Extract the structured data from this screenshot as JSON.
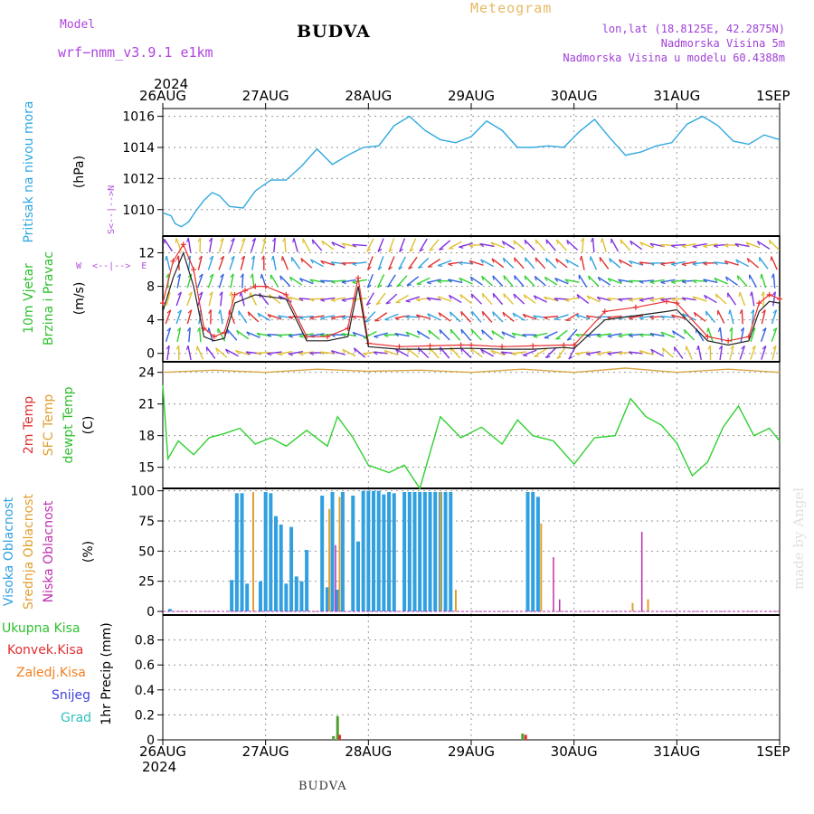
{
  "header": {
    "model_label": "Model",
    "model_name": "wrf−nmm_v3.9.1  e1km",
    "title": "BUDVA",
    "meteogram_label": "Meteogram",
    "lonlat": "lon,lat (18.8125E, 42.2875N)",
    "elevation": "Nadmorska Visina 5m",
    "model_elevation": "Nadmorska Visina u modelu 60.4388m"
  },
  "year_label": "2024",
  "date_ticks": [
    "26AUG",
    "27AUG",
    "28AUG",
    "29AUG",
    "30AUG",
    "31AUG",
    "1SEP"
  ],
  "footer_title": "BUDVA",
  "watermark": "made by Angel",
  "wind_compass": {
    "n": "N",
    "w": "W",
    "e": "E",
    "s": "S"
  },
  "colors": {
    "pressure": "#30a8e0",
    "wind_speed": "#222222",
    "gust": "#e83030",
    "sfc_temp": "#d8a848",
    "dewpt_temp": "#30d030",
    "high_cloud": "#30a0e0",
    "mid_cloud": "#e0a030",
    "low_cloud": "#c030b0",
    "total_precip": "#50a030",
    "conv_precip": "#e03030",
    "frozen_precip": "#f08020"
  },
  "chart_data": [
    {
      "type": "line",
      "panel": "pressure",
      "ylabel": [
        "Pritisak na nivou mora",
        "(hPa)"
      ],
      "ylim": [
        1008.3,
        1016.5
      ],
      "yticks": [
        1010,
        1012,
        1014,
        1016
      ],
      "grid": true,
      "x_unit": "days since 26AUG 00Z",
      "series": [
        {
          "values_x": [
            0,
            0.08,
            0.12,
            0.18,
            0.25,
            0.32,
            0.4,
            0.48,
            0.55,
            0.65,
            0.78,
            0.9,
            1.05,
            1.2,
            1.35,
            1.5,
            1.65,
            1.8,
            1.95,
            2.1,
            2.25,
            2.4,
            2.55,
            2.7,
            2.85,
            3.0,
            3.15,
            3.3,
            3.45,
            3.6,
            3.75,
            3.9,
            4.05,
            4.2,
            4.35,
            4.5,
            4.65,
            4.8,
            4.95,
            5.1,
            5.25,
            5.4,
            5.55,
            5.7,
            5.85,
            6.0
          ],
          "values_y": [
            1009.8,
            1009.6,
            1009.1,
            1008.9,
            1009.2,
            1009.9,
            1010.6,
            1011.1,
            1010.9,
            1010.2,
            1010.1,
            1011.2,
            1011.9,
            1011.9,
            1012.8,
            1013.9,
            1012.9,
            1013.5,
            1014.0,
            1014.1,
            1015.4,
            1016.0,
            1015.1,
            1014.5,
            1014.3,
            1014.7,
            1015.7,
            1015.1,
            1014.0,
            1014.0,
            1014.1,
            1014.0,
            1015.0,
            1015.8,
            1014.6,
            1013.5,
            1013.7,
            1014.1,
            1014.3,
            1015.5,
            1016.0,
            1015.4,
            1014.4,
            1014.2,
            1014.8,
            1014.5
          ]
        }
      ]
    },
    {
      "type": "line",
      "panel": "wind",
      "ylabel": [
        "10m Vjetar",
        "Brzina i Pravac",
        "(m/s)"
      ],
      "ylim": [
        -1,
        14
      ],
      "yticks": [
        0,
        4,
        8,
        12
      ],
      "grid": true,
      "series": [
        {
          "name": "speed",
          "values_x": [
            0,
            0.1,
            0.2,
            0.3,
            0.4,
            0.5,
            0.6,
            0.7,
            0.8,
            0.9,
            1.0,
            1.2,
            1.4,
            1.6,
            1.8,
            1.9,
            2.0,
            2.3,
            2.6,
            2.9,
            3.0,
            3.3,
            3.6,
            3.9,
            4.0,
            4.3,
            4.6,
            4.9,
            5.0,
            5.3,
            5.5,
            5.7,
            5.8,
            5.9,
            6.0
          ],
          "values_y": [
            5,
            9,
            12,
            8,
            2,
            1.5,
            1.8,
            6,
            6.5,
            7,
            6.8,
            6.5,
            1.5,
            1.5,
            2.0,
            8,
            0.8,
            0.5,
            0.5,
            0.6,
            0.6,
            0.5,
            0.5,
            0.7,
            0.6,
            4,
            4.5,
            5,
            5.2,
            1.5,
            1.0,
            1.5,
            5.0,
            6.2,
            6.0
          ]
        },
        {
          "name": "gust",
          "values_x": [
            0,
            0.1,
            0.2,
            0.3,
            0.4,
            0.5,
            0.6,
            0.7,
            0.8,
            0.9,
            1.0,
            1.2,
            1.4,
            1.6,
            1.8,
            1.9,
            2.0,
            2.3,
            2.6,
            2.9,
            3.0,
            3.3,
            3.6,
            3.9,
            4.0,
            4.3,
            4.6,
            4.9,
            5.0,
            5.3,
            5.5,
            5.7,
            5.8,
            5.9,
            6.0
          ],
          "values_y": [
            6,
            11,
            13,
            10,
            3,
            2,
            2.5,
            7,
            7.5,
            8,
            8,
            7,
            2,
            2,
            3,
            9,
            1.2,
            0.8,
            0.9,
            1.0,
            1.0,
            0.8,
            0.9,
            1.0,
            1.0,
            5,
            5.5,
            6.2,
            6,
            2,
            1.5,
            2,
            6.0,
            7.0,
            6.5
          ]
        }
      ],
      "wind_barbs": true
    },
    {
      "type": "line",
      "panel": "temperature",
      "ylabel": [
        "2m Temp",
        "SFC Temp",
        "dewpt Temp",
        "(C)"
      ],
      "ylim": [
        13,
        25
      ],
      "yticks": [
        15,
        18,
        21,
        24
      ],
      "grid": true,
      "series": [
        {
          "name": "sfc",
          "values_x": [
            0,
            0.5,
            1.0,
            1.5,
            2.0,
            2.5,
            3.0,
            3.5,
            4.0,
            4.5,
            5.0,
            5.5,
            6.0
          ],
          "values_y": [
            24.0,
            24.2,
            24.0,
            24.3,
            24.1,
            24.2,
            24.0,
            24.3,
            24.0,
            24.4,
            24.0,
            24.3,
            24.0
          ]
        },
        {
          "name": "dewpt",
          "values_x": [
            0,
            0.05,
            0.15,
            0.3,
            0.45,
            0.6,
            0.75,
            0.9,
            1.05,
            1.2,
            1.4,
            1.6,
            1.7,
            1.85,
            2.0,
            2.2,
            2.35,
            2.5,
            2.7,
            2.9,
            3.1,
            3.3,
            3.45,
            3.6,
            3.8,
            4.0,
            4.2,
            4.4,
            4.55,
            4.7,
            4.85,
            5.0,
            5.15,
            5.3,
            5.45,
            5.6,
            5.75,
            5.9,
            6.0
          ],
          "values_y": [
            22.8,
            15.8,
            17.5,
            16.2,
            17.8,
            18.2,
            18.7,
            17.2,
            17.8,
            17.0,
            18.5,
            17.0,
            19.8,
            17.8,
            15.2,
            14.5,
            15.2,
            13.0,
            19.8,
            17.8,
            18.8,
            17.2,
            19.5,
            18.0,
            17.5,
            15.3,
            17.8,
            18.0,
            21.5,
            19.8,
            19.0,
            17.3,
            14.2,
            15.5,
            18.8,
            20.8,
            18.0,
            18.7,
            17.5
          ]
        }
      ]
    },
    {
      "type": "bar",
      "panel": "cloud",
      "ylabel": [
        "Visoka Oblacnost",
        "Srednja Oblacnost",
        "Niska Oblacnost",
        "(%)"
      ],
      "ylim": [
        -3,
        102
      ],
      "yticks": [
        0,
        25,
        50,
        75,
        100
      ],
      "grid": true,
      "series": [
        {
          "name": "high",
          "values_x": [
            0.07,
            0.67,
            0.72,
            0.77,
            0.82,
            0.95,
            1.0,
            1.05,
            1.1,
            1.15,
            1.2,
            1.25,
            1.3,
            1.35,
            1.4,
            1.55,
            1.6,
            1.65,
            1.7,
            1.75,
            1.85,
            1.9,
            1.95,
            2.0,
            2.05,
            2.1,
            2.15,
            2.2,
            2.25,
            2.35,
            2.4,
            2.45,
            2.5,
            2.55,
            2.6,
            2.65,
            2.7,
            2.75,
            2.8,
            3.55,
            3.6,
            3.65
          ],
          "values_y": [
            2,
            26,
            98,
            98,
            23,
            25,
            99,
            98,
            79,
            72,
            23,
            70,
            29,
            25,
            51,
            96,
            20,
            99,
            18,
            99,
            96,
            58,
            100,
            100,
            100,
            100,
            97,
            99,
            98,
            99,
            99,
            99,
            99,
            99,
            99,
            99,
            99,
            99,
            99,
            99,
            99,
            95
          ]
        },
        {
          "name": "mid",
          "values_x": [
            0.88,
            1.62,
            1.72,
            2.7,
            2.85,
            3.68,
            4.57,
            4.72
          ],
          "values_y": [
            99,
            85,
            95,
            99,
            18,
            73,
            7,
            10
          ]
        },
        {
          "name": "low",
          "values_x": [
            1.68,
            3.8,
            3.86,
            4.66
          ],
          "values_y": [
            55,
            45,
            10,
            66
          ]
        }
      ]
    },
    {
      "type": "bar",
      "panel": "precip",
      "ylabel": [
        "1hr Precip (mm)"
      ],
      "legend": [
        "Ukupna Kisa",
        "Konvek.Kisa",
        "Zaledj.Kisa",
        "Snijeg",
        "Grad"
      ],
      "ylim": [
        0,
        1.0
      ],
      "yticks": [
        0,
        0.2,
        0.4,
        0.6,
        0.8
      ],
      "grid": true,
      "series": [
        {
          "name": "total",
          "values_x": [
            1.66,
            1.7,
            3.5
          ],
          "values_y": [
            0.03,
            0.19,
            0.05
          ]
        },
        {
          "name": "conv",
          "values_x": [
            1.72,
            3.53
          ],
          "values_y": [
            0.04,
            0.04
          ]
        }
      ]
    }
  ]
}
